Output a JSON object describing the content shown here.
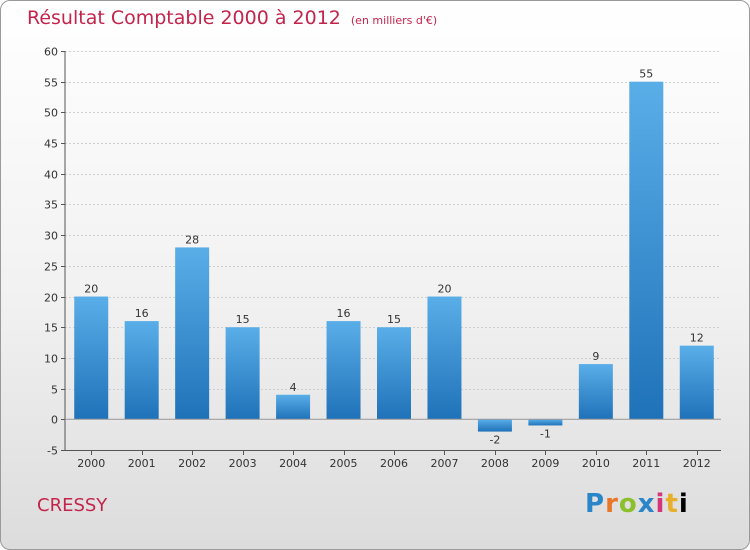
{
  "header": {
    "title": "Résultat Comptable 2000 à 2012",
    "subtitle": "(en milliers d'€)"
  },
  "footer": {
    "commune": "CRESSY",
    "logo_letters": [
      "P",
      "r",
      "o",
      "x",
      "i",
      "t",
      "i"
    ]
  },
  "colors": {
    "title": "#c4244c",
    "bar_top": "#5aaee8",
    "bar_bottom": "#1f72b8",
    "grid": "#cfcfcf"
  },
  "chart_data": {
    "type": "bar",
    "title": "Résultat Comptable 2000 à 2012",
    "subtitle": "(en milliers d'€)",
    "categories": [
      "2000",
      "2001",
      "2002",
      "2003",
      "2004",
      "2005",
      "2006",
      "2007",
      "2008",
      "2009",
      "2010",
      "2011",
      "2012"
    ],
    "values": [
      20,
      16,
      28,
      15,
      4,
      16,
      15,
      20,
      -2,
      -1,
      9,
      55,
      12
    ],
    "ylim": [
      -5,
      60
    ],
    "yticks": [
      -5,
      0,
      5,
      10,
      15,
      20,
      25,
      30,
      35,
      40,
      45,
      50,
      55,
      60
    ],
    "grid": true,
    "data_labels": true
  }
}
